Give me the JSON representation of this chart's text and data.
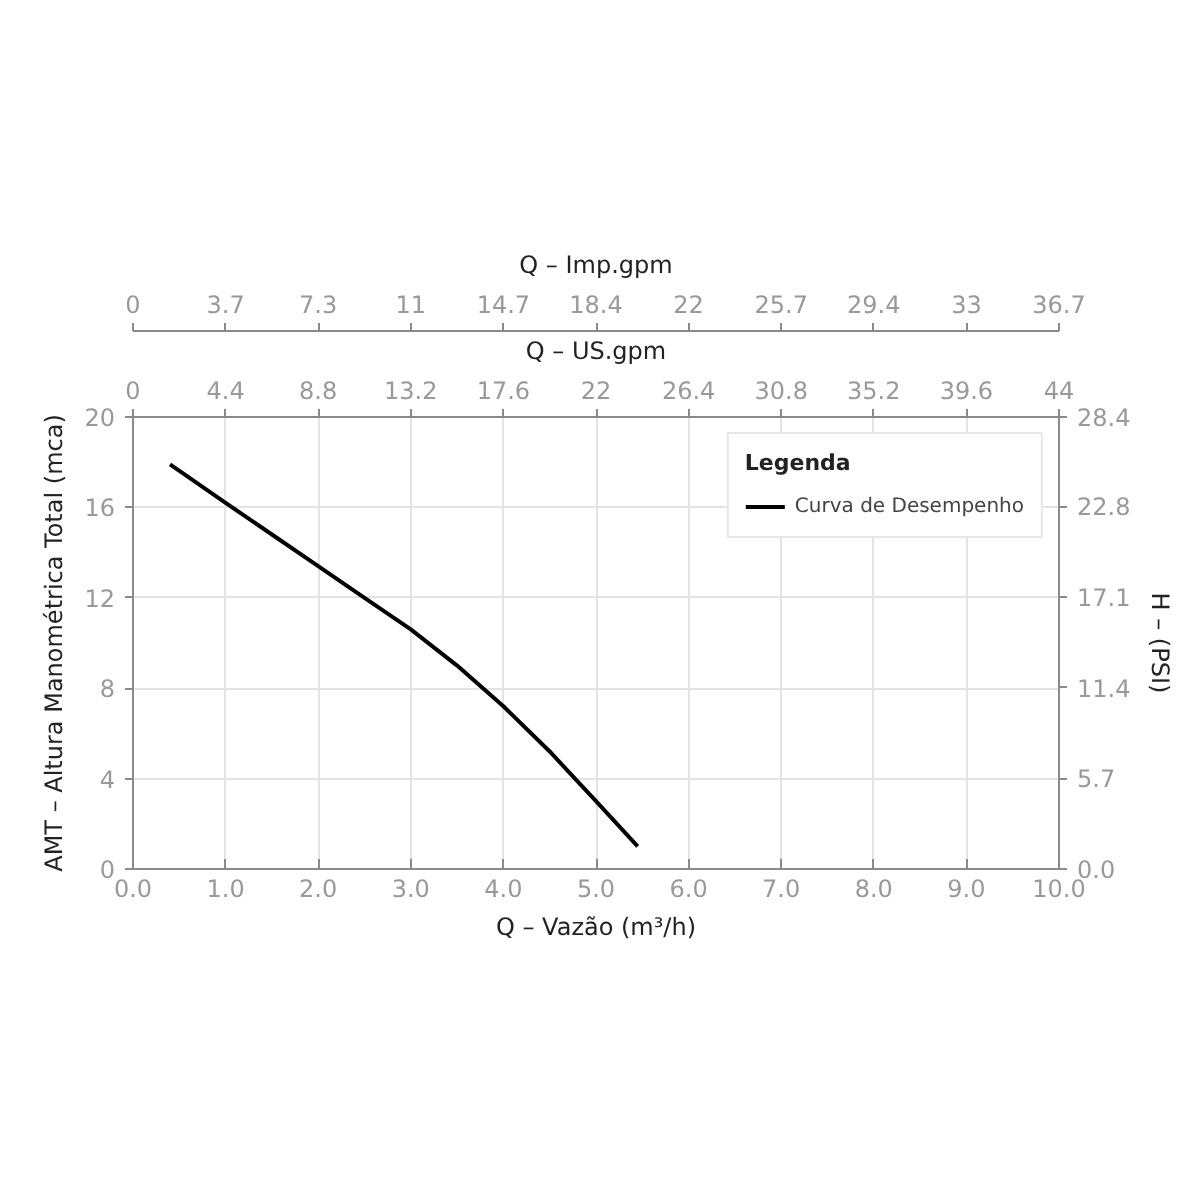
{
  "chart_data": {
    "type": "line",
    "xlabel": "Q – Vazão (m³/h)",
    "ylabel": "AMT – Altura Manométrica Total (mca)",
    "y2label": "H – (PSI)",
    "x2label": "Q – US.gpm",
    "legend_title": "Legenda",
    "annotations": [
      "Q – Imp.gpm",
      "0",
      "3.7",
      "7.3",
      "11",
      "14.7",
      "18.4",
      "22",
      "25.7",
      "29.4",
      "33",
      "36.7"
    ],
    "xlim": [
      0,
      10
    ],
    "xticks": [
      {
        "value": 0,
        "label": "0.0"
      },
      {
        "value": 1,
        "label": "1.0"
      },
      {
        "value": 2,
        "label": "2.0"
      },
      {
        "value": 3,
        "label": "3.0"
      },
      {
        "value": 4,
        "label": "4.0"
      },
      {
        "value": 5,
        "label": "5.0"
      },
      {
        "value": 6,
        "label": "6.0"
      },
      {
        "value": 7,
        "label": "7.0"
      },
      {
        "value": 8,
        "label": "8.0"
      },
      {
        "value": 9,
        "label": "9.0"
      },
      {
        "value": 10,
        "label": "10.0"
      }
    ],
    "ylim": [
      0,
      20
    ],
    "yticks": [
      0,
      4,
      8,
      12,
      16,
      20
    ],
    "y2lim": [
      0,
      28.4
    ],
    "y2ticks": [
      {
        "value": 0,
        "label": "0.0"
      },
      5.7,
      11.4,
      17.1,
      22.8,
      28.4
    ],
    "x2lim": [
      0,
      44
    ],
    "x2ticks": [
      0,
      4.4,
      8.8,
      13.2,
      17.6,
      22,
      26.4,
      30.8,
      35.2,
      39.6,
      44
    ],
    "series": [
      {
        "name": "Curva de Desempenho",
        "color": "#000000",
        "x": [
          0.4,
          1.0,
          1.5,
          2.0,
          2.5,
          3.0,
          3.5,
          4.0,
          4.5,
          5.0,
          5.45
        ],
        "values": [
          17.9,
          16.2,
          14.8,
          13.4,
          12.0,
          10.6,
          9.0,
          7.2,
          5.2,
          3.0,
          1.0
        ]
      }
    ],
    "line_style": "solid",
    "grid": true,
    "legend": "top right"
  }
}
